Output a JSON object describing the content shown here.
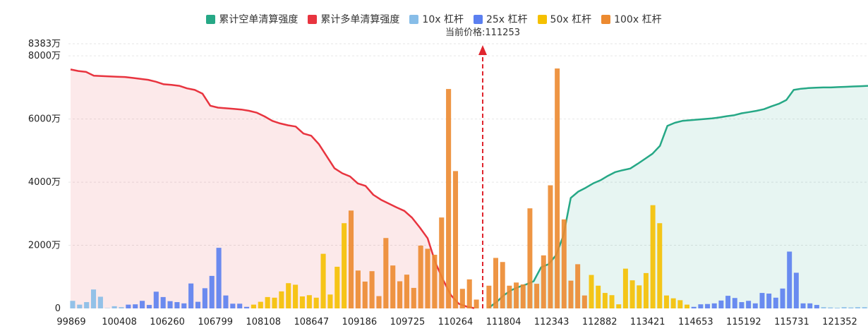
{
  "chart_data": {
    "type": "bar",
    "current_price_label": "当前价格:111253",
    "y_axis": {
      "ticks": [
        "0",
        "2000万",
        "4000万",
        "6000万",
        "8000万"
      ],
      "tick_values": [
        0,
        2000,
        4000,
        6000,
        8000
      ],
      "max_label": "8383万",
      "max_value": 8383,
      "unit": "万"
    },
    "x_axis": {
      "tick_labels": [
        "99869",
        "100408",
        "106260",
        "106799",
        "108108",
        "108647",
        "109186",
        "109725",
        "110264",
        "111804",
        "112343",
        "112882",
        "113421",
        "114653",
        "115192",
        "115731",
        "121352"
      ]
    },
    "legend": [
      {
        "name": "累计空单清算强度",
        "color": "#26a886",
        "kind": "line"
      },
      {
        "name": "累计多单清算强度",
        "color": "#e8343f",
        "kind": "line"
      },
      {
        "name": "10x 杠杆",
        "color": "#87bde8",
        "kind": "bar"
      },
      {
        "name": "25x 杠杆",
        "color": "#5b7ff0",
        "kind": "bar"
      },
      {
        "name": "50x 杠杆",
        "color": "#f5c000",
        "kind": "bar"
      },
      {
        "name": "100x 杠杆",
        "color": "#ec8a30",
        "kind": "bar"
      }
    ],
    "bars": {
      "left": [
        {
          "v": 240,
          "lev": "10x"
        },
        {
          "v": 120,
          "lev": "10x"
        },
        {
          "v": 200,
          "lev": "10x"
        },
        {
          "v": 600,
          "lev": "10x"
        },
        {
          "v": 370,
          "lev": "10x"
        },
        {
          "v": 10,
          "lev": "10x"
        },
        {
          "v": 70,
          "lev": "10x"
        },
        {
          "v": 40,
          "lev": "10x"
        },
        {
          "v": 120,
          "lev": "25x"
        },
        {
          "v": 130,
          "lev": "25x"
        },
        {
          "v": 240,
          "lev": "25x"
        },
        {
          "v": 110,
          "lev": "25x"
        },
        {
          "v": 530,
          "lev": "25x"
        },
        {
          "v": 360,
          "lev": "25x"
        },
        {
          "v": 230,
          "lev": "25x"
        },
        {
          "v": 200,
          "lev": "25x"
        },
        {
          "v": 160,
          "lev": "25x"
        },
        {
          "v": 790,
          "lev": "25x"
        },
        {
          "v": 210,
          "lev": "25x"
        },
        {
          "v": 640,
          "lev": "25x"
        },
        {
          "v": 1030,
          "lev": "25x"
        },
        {
          "v": 1920,
          "lev": "25x"
        },
        {
          "v": 410,
          "lev": "25x"
        },
        {
          "v": 150,
          "lev": "25x"
        },
        {
          "v": 150,
          "lev": "25x"
        },
        {
          "v": 50,
          "lev": "25x"
        },
        {
          "v": 120,
          "lev": "50x"
        },
        {
          "v": 210,
          "lev": "50x"
        },
        {
          "v": 360,
          "lev": "50x"
        },
        {
          "v": 340,
          "lev": "50x"
        },
        {
          "v": 540,
          "lev": "50x"
        },
        {
          "v": 800,
          "lev": "50x"
        },
        {
          "v": 750,
          "lev": "50x"
        },
        {
          "v": 380,
          "lev": "50x"
        },
        {
          "v": 420,
          "lev": "50x"
        },
        {
          "v": 340,
          "lev": "50x"
        },
        {
          "v": 1730,
          "lev": "50x"
        },
        {
          "v": 440,
          "lev": "50x"
        },
        {
          "v": 1320,
          "lev": "50x"
        },
        {
          "v": 2700,
          "lev": "50x"
        },
        {
          "v": 3100,
          "lev": "100x"
        },
        {
          "v": 1200,
          "lev": "100x"
        },
        {
          "v": 850,
          "lev": "100x"
        },
        {
          "v": 1180,
          "lev": "100x"
        },
        {
          "v": 390,
          "lev": "100x"
        },
        {
          "v": 2230,
          "lev": "100x"
        },
        {
          "v": 1360,
          "lev": "100x"
        },
        {
          "v": 860,
          "lev": "100x"
        },
        {
          "v": 1070,
          "lev": "100x"
        },
        {
          "v": 650,
          "lev": "100x"
        },
        {
          "v": 1990,
          "lev": "100x"
        },
        {
          "v": 1890,
          "lev": "100x"
        },
        {
          "v": 1700,
          "lev": "100x"
        },
        {
          "v": 2880,
          "lev": "100x"
        },
        {
          "v": 6950,
          "lev": "100x"
        },
        {
          "v": 4350,
          "lev": "100x"
        },
        {
          "v": 620,
          "lev": "100x"
        },
        {
          "v": 920,
          "lev": "100x"
        },
        {
          "v": 280,
          "lev": "100x"
        }
      ],
      "right": [
        {
          "v": 720,
          "lev": "100x"
        },
        {
          "v": 1600,
          "lev": "100x"
        },
        {
          "v": 1470,
          "lev": "100x"
        },
        {
          "v": 720,
          "lev": "100x"
        },
        {
          "v": 820,
          "lev": "100x"
        },
        {
          "v": 760,
          "lev": "100x"
        },
        {
          "v": 3170,
          "lev": "100x"
        },
        {
          "v": 780,
          "lev": "100x"
        },
        {
          "v": 1680,
          "lev": "100x"
        },
        {
          "v": 3900,
          "lev": "100x"
        },
        {
          "v": 7600,
          "lev": "100x"
        },
        {
          "v": 2820,
          "lev": "100x"
        },
        {
          "v": 880,
          "lev": "100x"
        },
        {
          "v": 1400,
          "lev": "100x"
        },
        {
          "v": 410,
          "lev": "100x"
        },
        {
          "v": 1060,
          "lev": "50x"
        },
        {
          "v": 720,
          "lev": "50x"
        },
        {
          "v": 490,
          "lev": "50x"
        },
        {
          "v": 420,
          "lev": "50x"
        },
        {
          "v": 130,
          "lev": "50x"
        },
        {
          "v": 1260,
          "lev": "50x"
        },
        {
          "v": 890,
          "lev": "50x"
        },
        {
          "v": 730,
          "lev": "50x"
        },
        {
          "v": 1120,
          "lev": "50x"
        },
        {
          "v": 3270,
          "lev": "50x"
        },
        {
          "v": 2700,
          "lev": "50x"
        },
        {
          "v": 410,
          "lev": "50x"
        },
        {
          "v": 320,
          "lev": "50x"
        },
        {
          "v": 260,
          "lev": "50x"
        },
        {
          "v": 120,
          "lev": "50x"
        },
        {
          "v": 50,
          "lev": "25x"
        },
        {
          "v": 130,
          "lev": "25x"
        },
        {
          "v": 140,
          "lev": "25x"
        },
        {
          "v": 160,
          "lev": "25x"
        },
        {
          "v": 250,
          "lev": "25x"
        },
        {
          "v": 400,
          "lev": "25x"
        },
        {
          "v": 330,
          "lev": "25x"
        },
        {
          "v": 200,
          "lev": "25x"
        },
        {
          "v": 240,
          "lev": "25x"
        },
        {
          "v": 160,
          "lev": "25x"
        },
        {
          "v": 490,
          "lev": "25x"
        },
        {
          "v": 470,
          "lev": "25x"
        },
        {
          "v": 340,
          "lev": "25x"
        },
        {
          "v": 630,
          "lev": "25x"
        },
        {
          "v": 1800,
          "lev": "25x"
        },
        {
          "v": 1130,
          "lev": "25x"
        },
        {
          "v": 160,
          "lev": "25x"
        },
        {
          "v": 160,
          "lev": "25x"
        },
        {
          "v": 110,
          "lev": "25x"
        },
        {
          "v": 40,
          "lev": "10x"
        },
        {
          "v": 30,
          "lev": "10x"
        },
        {
          "v": 20,
          "lev": "10x"
        },
        {
          "v": 40,
          "lev": "10x"
        },
        {
          "v": 30,
          "lev": "10x"
        },
        {
          "v": 40,
          "lev": "10x"
        },
        {
          "v": 40,
          "lev": "10x"
        }
      ]
    },
    "long_cumulative": [
      7570,
      7520,
      7490,
      7370,
      7360,
      7350,
      7340,
      7330,
      7300,
      7270,
      7240,
      7180,
      7100,
      7080,
      7050,
      6970,
      6920,
      6800,
      6420,
      6360,
      6340,
      6320,
      6300,
      6260,
      6200,
      6080,
      5940,
      5860,
      5800,
      5760,
      5540,
      5470,
      5200,
      4820,
      4440,
      4280,
      4180,
      3960,
      3880,
      3600,
      3440,
      3320,
      3200,
      3090,
      2870,
      2560,
      2220,
      1450,
      900,
      420,
      150,
      60,
      10
    ],
    "short_cumulative": [
      30,
      200,
      420,
      580,
      680,
      760,
      860,
      1300,
      1400,
      1680,
      2300,
      3500,
      3700,
      3820,
      3960,
      4060,
      4200,
      4320,
      4380,
      4430,
      4580,
      4740,
      4900,
      5150,
      5780,
      5880,
      5940,
      5960,
      5980,
      6000,
      6020,
      6050,
      6090,
      6120,
      6180,
      6220,
      6260,
      6310,
      6400,
      6480,
      6600,
      6920,
      6960,
      6980,
      6990,
      7000,
      7000,
      7010,
      7020,
      7030,
      7040,
      7050
    ]
  }
}
